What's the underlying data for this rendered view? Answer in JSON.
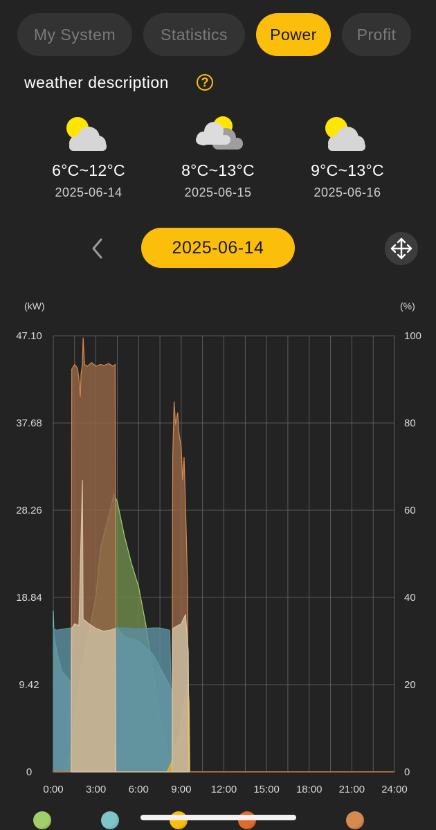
{
  "tabs": [
    {
      "label": "My System",
      "active": false
    },
    {
      "label": "Statistics",
      "active": false
    },
    {
      "label": "Power",
      "active": true
    },
    {
      "label": "Profit",
      "active": false
    }
  ],
  "weather": {
    "title": "weather description",
    "help_icon": "question-circle-icon",
    "days": [
      {
        "temp": "6°C~12°C",
        "date": "2025-06-14",
        "icon": "partly-sunny-icon"
      },
      {
        "temp": "8°C~13°C",
        "date": "2025-06-15",
        "icon": "mostly-cloudy-icon"
      },
      {
        "temp": "9°C~13°C",
        "date": "2025-06-16",
        "icon": "partly-sunny-icon"
      }
    ]
  },
  "date_nav": {
    "selected_date": "2025-06-14",
    "back_icon": "chevron-left-icon",
    "expand_icon": "move-arrows-icon"
  },
  "chart_data": {
    "type": "area",
    "left_unit": "(kW)",
    "right_unit": "(%)",
    "x_ticks": [
      "0:00",
      "3:00",
      "6:00",
      "9:00",
      "12:00",
      "15:00",
      "18:00",
      "21:00",
      "24:00"
    ],
    "y_left_ticks": [
      "47.10",
      "37.68",
      "28.26",
      "18.84",
      "9.42",
      "0"
    ],
    "y_right_ticks": [
      "100",
      "80",
      "60",
      "40",
      "20",
      "0"
    ],
    "ylim_left": [
      0,
      47.1
    ],
    "ylim_right": [
      0,
      100
    ],
    "xlim_hours": [
      0,
      24
    ],
    "grid": true,
    "series": [
      {
        "color": "#a3cf6b",
        "fill": "#6e8a4c",
        "axis": "left",
        "points": [
          [
            0,
            0
          ],
          [
            0.6,
            0
          ],
          [
            1.25,
            2
          ],
          [
            1.5,
            6
          ],
          [
            2,
            11.5
          ],
          [
            2.5,
            15
          ],
          [
            3,
            19
          ],
          [
            3.3,
            24
          ],
          [
            3.7,
            26.5
          ],
          [
            4.05,
            28.5
          ],
          [
            4.25,
            30
          ],
          [
            4.5,
            29.2
          ],
          [
            5,
            25.5
          ],
          [
            5.5,
            22.5
          ],
          [
            6,
            20
          ],
          [
            6.5,
            16
          ],
          [
            7,
            11
          ],
          [
            7.5,
            5.5
          ],
          [
            8,
            2.2
          ],
          [
            8.4,
            0.6
          ],
          [
            8.8,
            0
          ]
        ]
      },
      {
        "color": "#7fc4c6",
        "fill": "#7fb8b0",
        "axis": "right",
        "points": [
          [
            0,
            37
          ],
          [
            0.05,
            31
          ],
          [
            0.3,
            27
          ],
          [
            0.6,
            23
          ],
          [
            0.9,
            22
          ],
          [
            1.2,
            20.5
          ],
          [
            1.25,
            12
          ],
          [
            1.3,
            0
          ],
          [
            1.4,
            0
          ],
          [
            4.4,
            0
          ],
          [
            4.5,
            33
          ],
          [
            5,
            31
          ],
          [
            6,
            30
          ],
          [
            7,
            27
          ],
          [
            7.5,
            24
          ],
          [
            8,
            21
          ],
          [
            8.3,
            19
          ],
          [
            8.4,
            10
          ],
          [
            8.5,
            0
          ],
          [
            24,
            0
          ]
        ]
      },
      {
        "color": "#5a8fa0",
        "fill": "#5d8fa0",
        "axis": "right",
        "points": [
          [
            0,
            33
          ],
          [
            0.2,
            32.5
          ],
          [
            1.2,
            33
          ],
          [
            1.25,
            0
          ],
          [
            4.35,
            0
          ],
          [
            4.4,
            33
          ],
          [
            5,
            33
          ],
          [
            6,
            32.8
          ],
          [
            7,
            33
          ],
          [
            7.5,
            33
          ],
          [
            8.2,
            32.5
          ],
          [
            8.4,
            0
          ],
          [
            24,
            0
          ]
        ]
      },
      {
        "color": "#fbbf0b",
        "fill": "#d9a84a",
        "axis": "right",
        "points": [
          [
            8.0,
            0
          ],
          [
            8.3,
            2
          ],
          [
            8.6,
            6
          ],
          [
            8.9,
            9
          ],
          [
            9.1,
            14
          ],
          [
            9.3,
            18
          ],
          [
            9.45,
            21
          ],
          [
            9.55,
            16
          ],
          [
            9.6,
            0
          ]
        ]
      },
      {
        "color": "#e06b2a",
        "fill": "#e06b2a",
        "axis": "left",
        "points": [
          [
            0,
            0
          ],
          [
            24,
            0
          ]
        ]
      },
      {
        "color": "#d58a50",
        "fill": "#946545",
        "axis": "left",
        "points": [
          [
            1.25,
            0
          ],
          [
            1.3,
            43.5
          ],
          [
            1.5,
            44
          ],
          [
            1.7,
            43.6
          ],
          [
            1.8,
            42.5
          ],
          [
            1.9,
            40.5
          ],
          [
            1.95,
            43
          ],
          [
            2.05,
            44
          ],
          [
            2.1,
            46.9
          ],
          [
            2.2,
            44
          ],
          [
            2.4,
            43.8
          ],
          [
            2.7,
            44.2
          ],
          [
            3,
            43.8
          ],
          [
            3.3,
            44
          ],
          [
            3.6,
            43.9
          ],
          [
            3.9,
            44.1
          ],
          [
            4.2,
            43.8
          ],
          [
            4.35,
            44
          ],
          [
            4.4,
            0
          ],
          [
            8.35,
            0
          ],
          [
            8.4,
            34
          ],
          [
            8.5,
            40
          ],
          [
            8.6,
            37.5
          ],
          [
            8.75,
            38.8
          ],
          [
            8.85,
            36.5
          ],
          [
            9.0,
            35
          ],
          [
            9.1,
            31.5
          ],
          [
            9.2,
            34
          ],
          [
            9.3,
            29
          ],
          [
            9.45,
            20
          ],
          [
            9.5,
            0
          ]
        ]
      },
      {
        "color": "#dcc3a5",
        "fill": "#cdbfa3",
        "axis": "left",
        "points": [
          [
            1.25,
            0
          ],
          [
            1.3,
            15.5
          ],
          [
            1.5,
            16
          ],
          [
            1.8,
            15.8
          ],
          [
            2.05,
            31.5
          ],
          [
            2.1,
            16.5
          ],
          [
            2.5,
            16
          ],
          [
            3,
            15.5
          ],
          [
            3.5,
            15.2
          ],
          [
            4,
            15.3
          ],
          [
            4.35,
            15.5
          ],
          [
            4.4,
            0
          ],
          [
            8.35,
            0
          ],
          [
            8.4,
            15.5
          ],
          [
            9.0,
            16
          ],
          [
            9.3,
            17
          ],
          [
            9.5,
            13
          ],
          [
            9.55,
            0
          ]
        ]
      }
    ],
    "legend_colors": [
      "#a3cf6b",
      "#7fc4c6",
      "#fbbf0b",
      "#e06b2a",
      "#d58a50"
    ]
  }
}
